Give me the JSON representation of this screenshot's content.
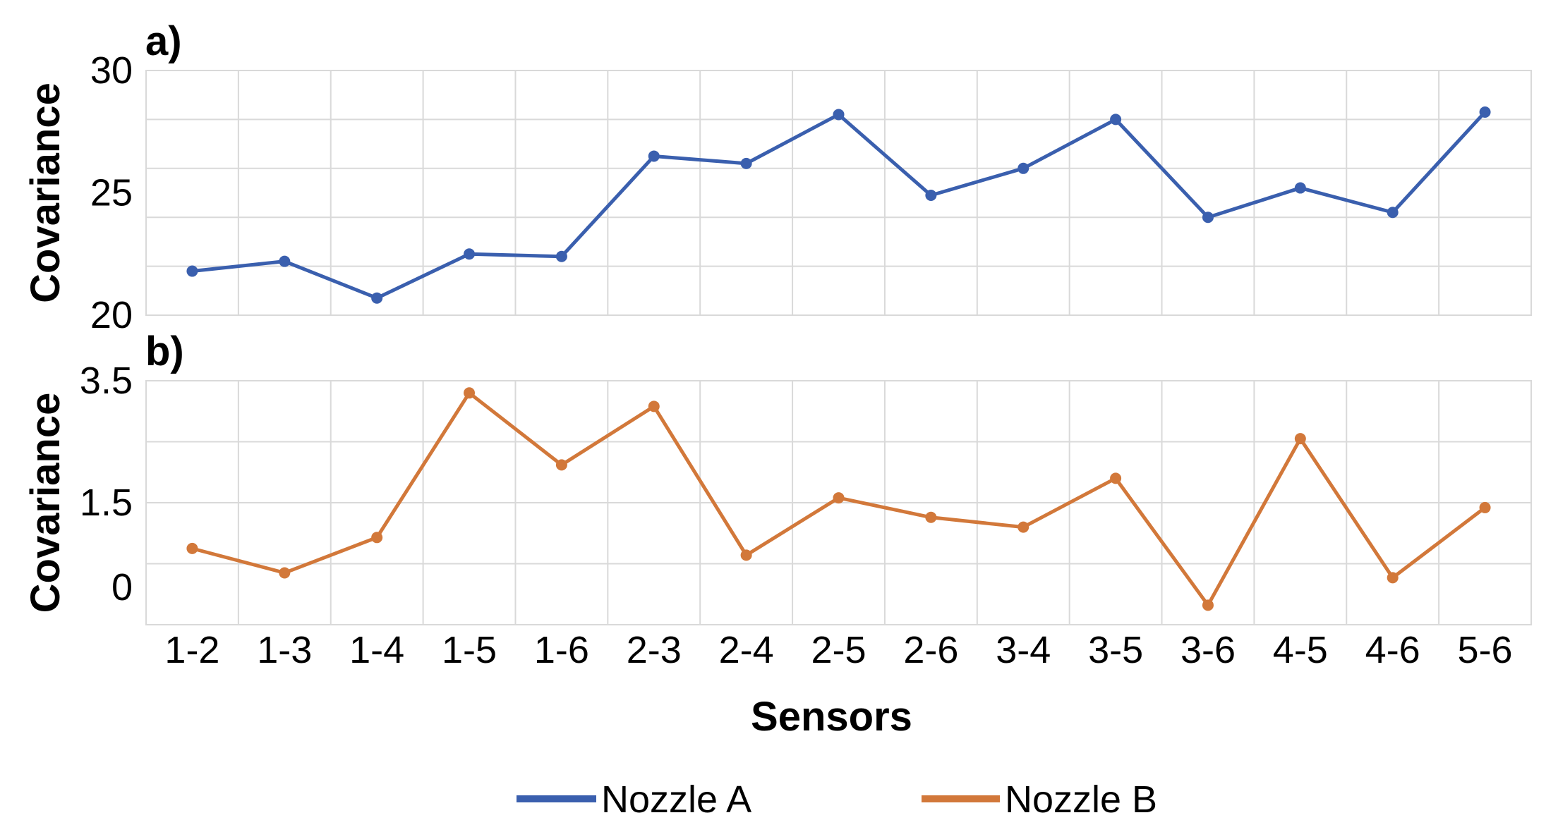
{
  "chart_data": [
    {
      "type": "line",
      "panel_label": "a)",
      "ylabel": "Covariance",
      "xlabel": "",
      "ylim": [
        20,
        30
      ],
      "yticks": [
        "30",
        "25",
        "20"
      ],
      "ytick_values": [
        30,
        25,
        20
      ],
      "grid": true,
      "categories": [
        "1-2",
        "1-3",
        "1-4",
        "1-5",
        "1-6",
        "2-3",
        "2-4",
        "2-5",
        "2-6",
        "3-4",
        "3-5",
        "3-6",
        "4-5",
        "4-6",
        "5-6"
      ],
      "series": [
        {
          "name": "Nozzle A",
          "color": "#3a5fae",
          "values": [
            21.8,
            22.2,
            20.7,
            22.5,
            22.4,
            26.5,
            26.2,
            28.2,
            24.9,
            26.0,
            28.0,
            24.0,
            25.2,
            24.2,
            28.3
          ]
        }
      ]
    },
    {
      "type": "line",
      "panel_label": "b)",
      "ylabel": "Covariance",
      "xlabel": "Sensors",
      "ylim": [
        -0.5,
        3.5
      ],
      "yticks": [
        "3.5",
        "1.5",
        "0"
      ],
      "ytick_values": [
        3.5,
        1.5,
        0
      ],
      "grid": true,
      "categories": [
        "1-2",
        "1-3",
        "1-4",
        "1-5",
        "1-6",
        "2-3",
        "2-4",
        "2-5",
        "2-6",
        "3-4",
        "3-5",
        "3-6",
        "4-5",
        "4-6",
        "5-6"
      ],
      "series": [
        {
          "name": "Nozzle B",
          "color": "#d2783a",
          "values": [
            0.75,
            0.35,
            0.93,
            3.3,
            2.12,
            3.08,
            0.64,
            1.58,
            1.26,
            1.1,
            1.9,
            -0.18,
            2.55,
            0.27,
            1.42
          ]
        }
      ]
    }
  ],
  "legend": {
    "placement": "bottom-center",
    "items": [
      {
        "label": "Nozzle A",
        "color": "#3a5fae"
      },
      {
        "label": "Nozzle B",
        "color": "#d2783a"
      }
    ]
  }
}
